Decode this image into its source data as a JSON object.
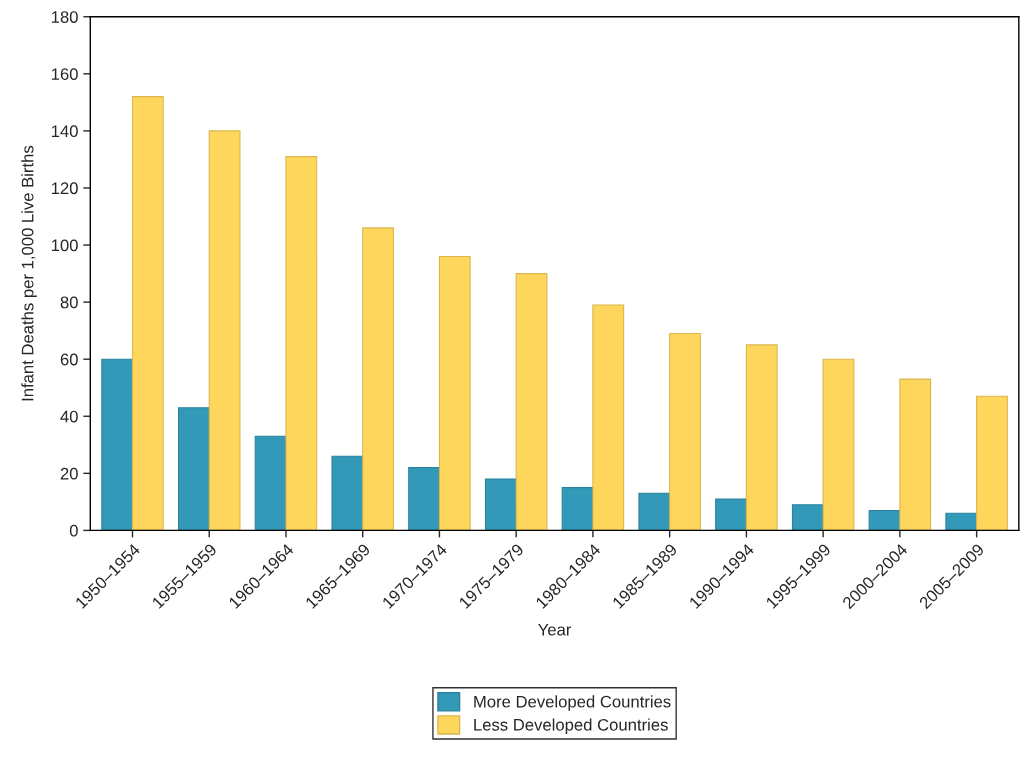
{
  "chart_data": {
    "type": "bar",
    "xlabel": "Year",
    "ylabel": "Infant Deaths per 1,000 Live Births",
    "categories": [
      "1950–1954",
      "1955–1959",
      "1960–1964",
      "1965–1969",
      "1970–1974",
      "1975–1979",
      "1980–1984",
      "1985–1989",
      "1990–1994",
      "1995–1999",
      "2000–2004",
      "2005–2009"
    ],
    "series": [
      {
        "name": "More Developed Countries",
        "color": "#3399b8",
        "values": [
          60,
          43,
          33,
          26,
          22,
          18,
          15,
          13,
          11,
          9,
          7,
          6
        ]
      },
      {
        "name": "Less Developed Countries",
        "color": "#ffd65c",
        "values": [
          152,
          140,
          131,
          106,
          96,
          90,
          79,
          69,
          65,
          60,
          53,
          47
        ]
      }
    ],
    "ylim": [
      0,
      180
    ],
    "yticks": [
      0,
      20,
      40,
      60,
      80,
      100,
      120,
      140,
      160,
      180
    ],
    "grid": false,
    "legend": "bottom"
  }
}
